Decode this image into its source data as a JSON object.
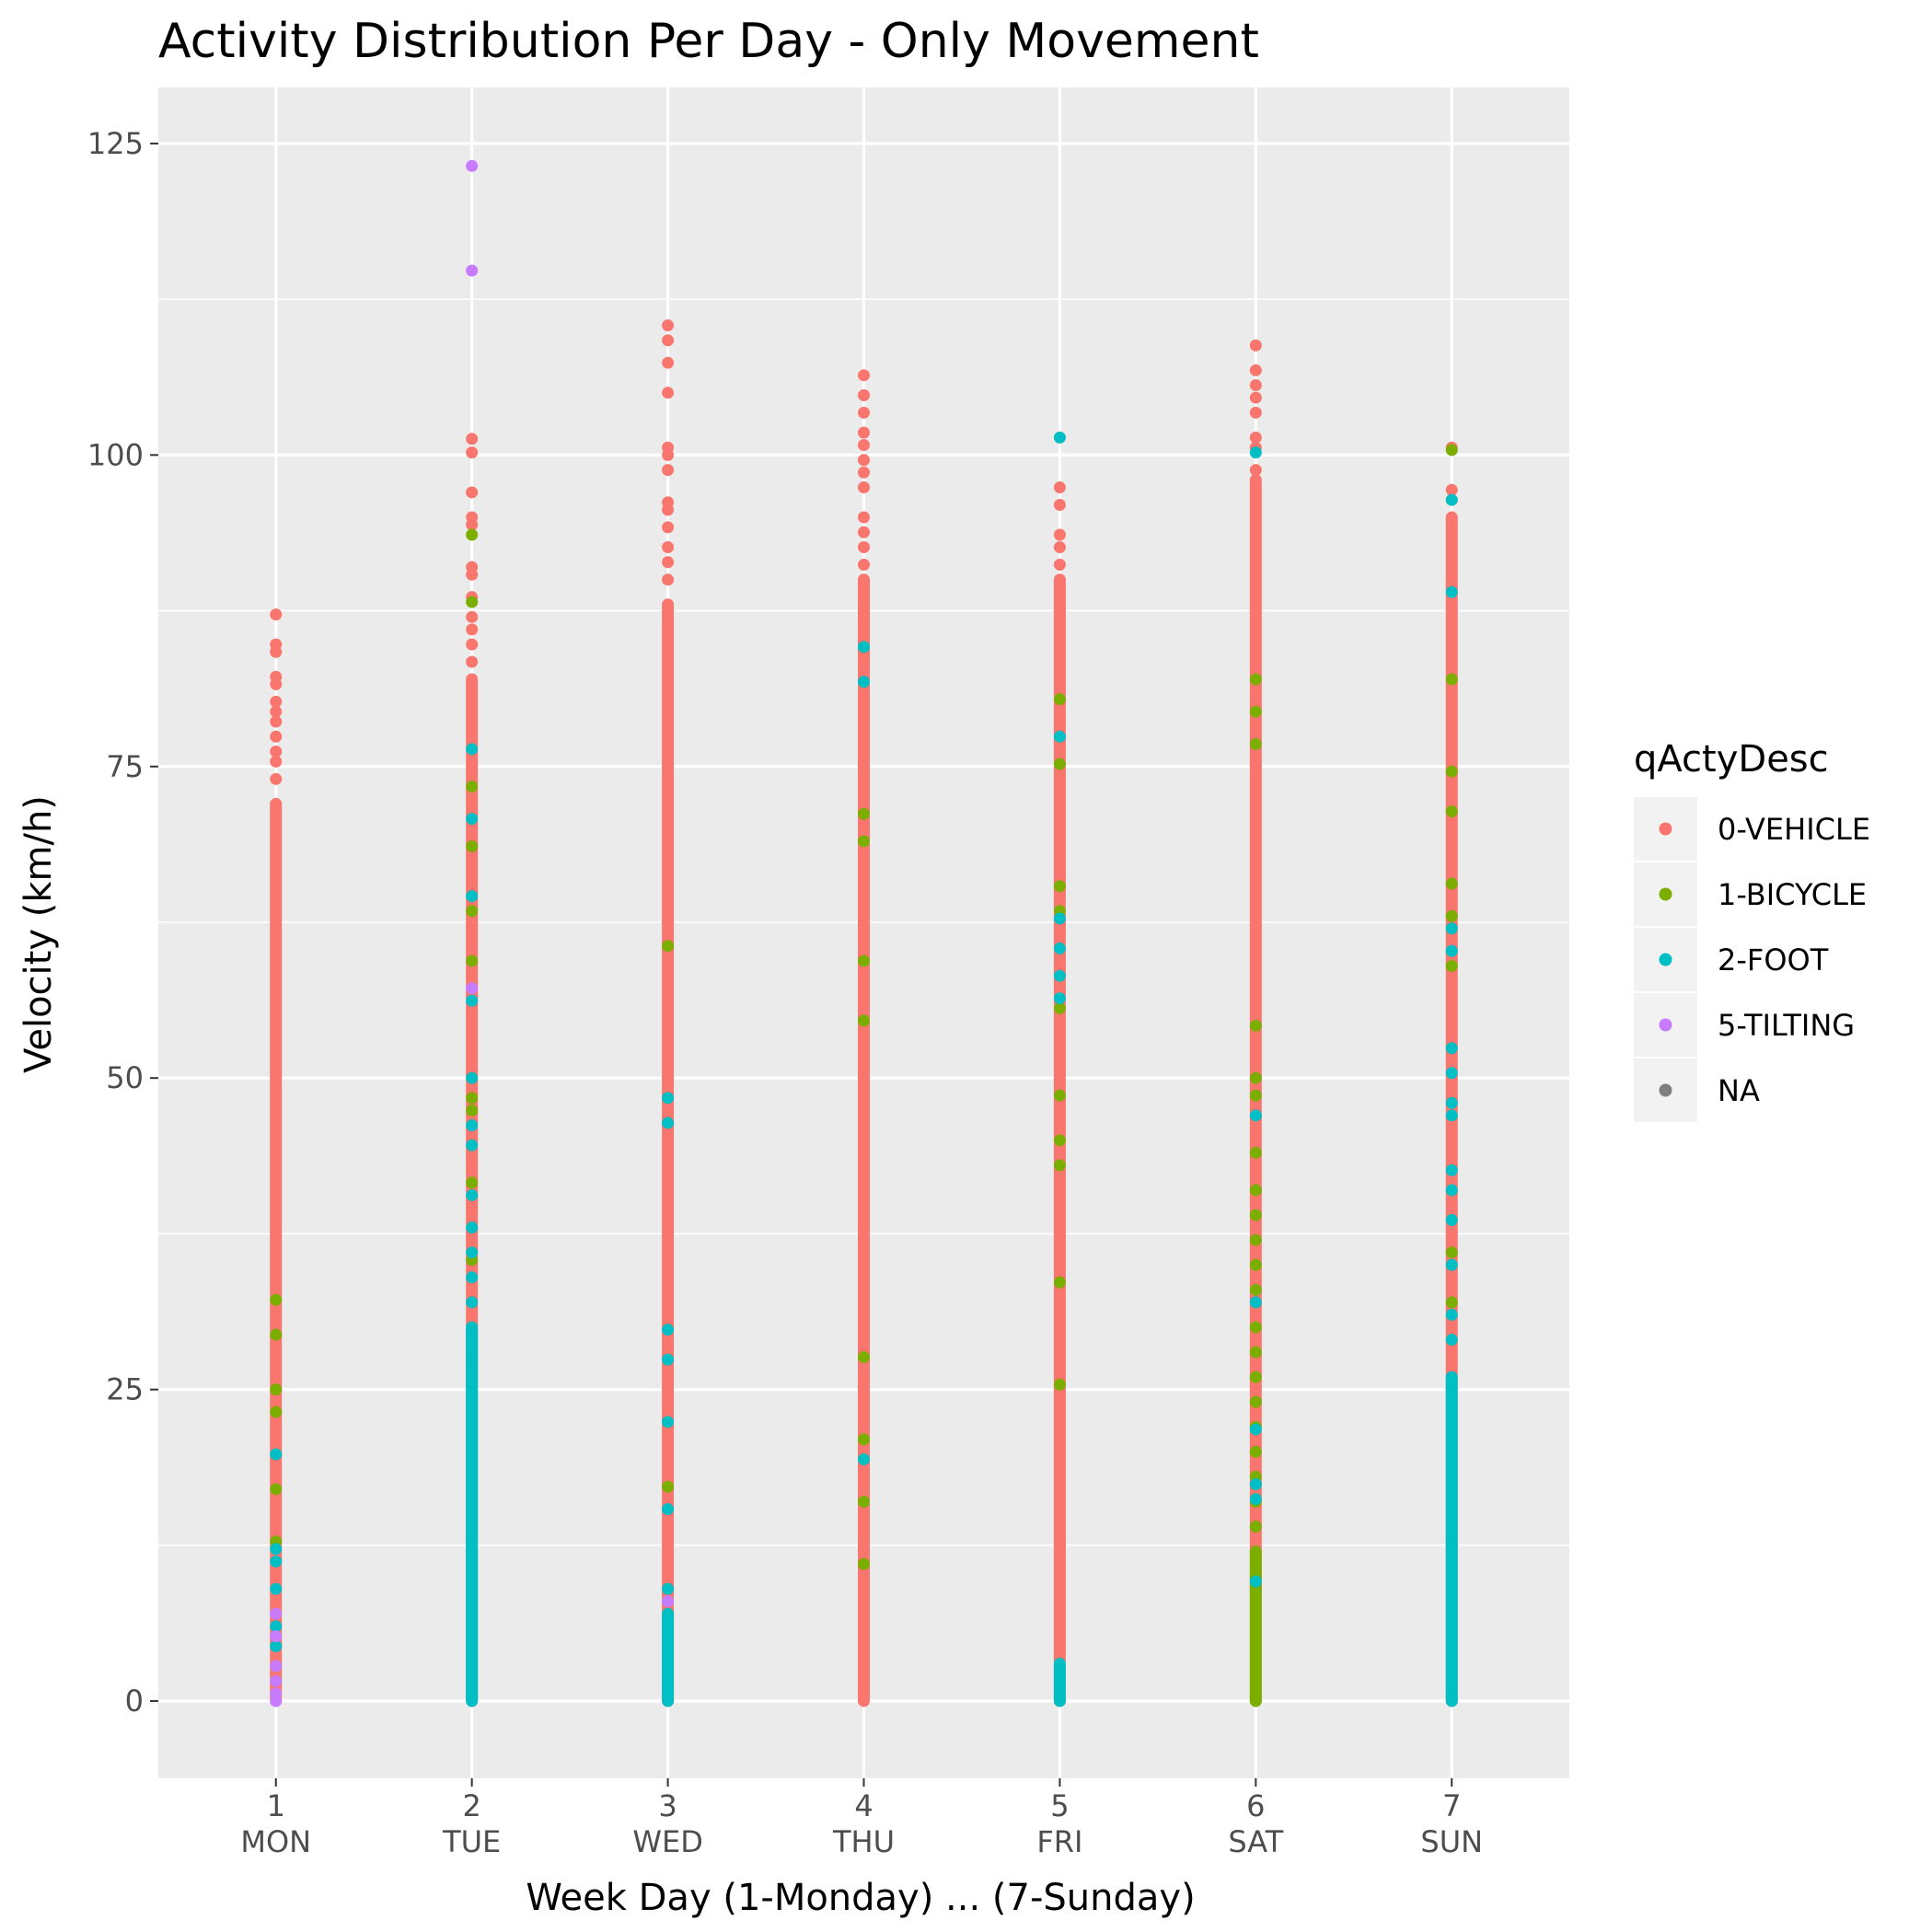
{
  "chart_data": {
    "type": "scatter",
    "title": "Activity Distribution Per Day - Only Movement",
    "xlabel": "Week Day (1-Monday) ... (7-Sunday)",
    "ylabel": "Velocity (km/h)",
    "xlim": [
      0.4,
      7.6
    ],
    "ylim": [
      -6.2,
      129.5
    ],
    "yticks": [
      0,
      25,
      50,
      75,
      100,
      125
    ],
    "xticks": [
      1,
      2,
      3,
      4,
      5,
      6,
      7
    ],
    "xtick_numbers": [
      "1",
      "2",
      "3",
      "4",
      "5",
      "6",
      "7"
    ],
    "xtick_days": [
      "MON",
      "TUE",
      "WED",
      "THU",
      "FRI",
      "SAT",
      "SUN"
    ],
    "background": "#ebebeb",
    "grid": true,
    "legend": {
      "title": "qActyDesc",
      "position": "right",
      "entries": [
        {
          "label": "0-VEHICLE",
          "color": "#f8766d"
        },
        {
          "label": "1-BICYCLE",
          "color": "#7cae00"
        },
        {
          "label": "2-FOOT",
          "color": "#00bfc4"
        },
        {
          "label": "5-TILTING",
          "color": "#c77cff"
        },
        {
          "label": "NA",
          "color": "#7f7f7f"
        }
      ]
    },
    "series": [
      {
        "name": "0-VEHICLE",
        "color": "#f8766d",
        "ranges": [
          {
            "x": 1,
            "ymin": 0,
            "ymax": 72
          },
          {
            "x": 2,
            "ymin": 0,
            "ymax": 82
          },
          {
            "x": 3,
            "ymin": 0,
            "ymax": 88
          },
          {
            "x": 4,
            "ymin": 0,
            "ymax": 90
          },
          {
            "x": 5,
            "ymin": 0,
            "ymax": 90
          },
          {
            "x": 6,
            "ymin": 0,
            "ymax": 98
          },
          {
            "x": 7,
            "ymin": 0,
            "ymax": 95
          }
        ],
        "points": [
          {
            "x": 1,
            "y": 87.2
          },
          {
            "x": 1,
            "y": 84.8
          },
          {
            "x": 1,
            "y": 84.2
          },
          {
            "x": 1,
            "y": 82.2
          },
          {
            "x": 1,
            "y": 81.6
          },
          {
            "x": 1,
            "y": 80.2
          },
          {
            "x": 1,
            "y": 79.4
          },
          {
            "x": 1,
            "y": 78.6
          },
          {
            "x": 1,
            "y": 77.4
          },
          {
            "x": 1,
            "y": 76.2
          },
          {
            "x": 1,
            "y": 75.4
          },
          {
            "x": 1,
            "y": 74.0
          },
          {
            "x": 2,
            "y": 101.3
          },
          {
            "x": 2,
            "y": 100.2
          },
          {
            "x": 2,
            "y": 97.0
          },
          {
            "x": 2,
            "y": 95.0
          },
          {
            "x": 2,
            "y": 94.4
          },
          {
            "x": 2,
            "y": 91.0
          },
          {
            "x": 2,
            "y": 90.4
          },
          {
            "x": 2,
            "y": 88.6
          },
          {
            "x": 2,
            "y": 87.0
          },
          {
            "x": 2,
            "y": 86.0
          },
          {
            "x": 2,
            "y": 84.8
          },
          {
            "x": 2,
            "y": 83.4
          },
          {
            "x": 3,
            "y": 110.4
          },
          {
            "x": 3,
            "y": 109.2
          },
          {
            "x": 3,
            "y": 107.4
          },
          {
            "x": 3,
            "y": 105.0
          },
          {
            "x": 3,
            "y": 100.6
          },
          {
            "x": 3,
            "y": 100.0
          },
          {
            "x": 3,
            "y": 98.8
          },
          {
            "x": 3,
            "y": 96.2
          },
          {
            "x": 3,
            "y": 95.6
          },
          {
            "x": 3,
            "y": 94.2
          },
          {
            "x": 3,
            "y": 92.6
          },
          {
            "x": 3,
            "y": 91.4
          },
          {
            "x": 3,
            "y": 90.0
          },
          {
            "x": 4,
            "y": 106.4
          },
          {
            "x": 4,
            "y": 104.8
          },
          {
            "x": 4,
            "y": 103.4
          },
          {
            "x": 4,
            "y": 101.8
          },
          {
            "x": 4,
            "y": 100.8
          },
          {
            "x": 4,
            "y": 99.6
          },
          {
            "x": 4,
            "y": 98.6
          },
          {
            "x": 4,
            "y": 97.4
          },
          {
            "x": 4,
            "y": 95.0
          },
          {
            "x": 4,
            "y": 93.8
          },
          {
            "x": 4,
            "y": 92.6
          },
          {
            "x": 4,
            "y": 91.2
          },
          {
            "x": 5,
            "y": 97.4
          },
          {
            "x": 5,
            "y": 96.0
          },
          {
            "x": 5,
            "y": 93.6
          },
          {
            "x": 5,
            "y": 92.6
          },
          {
            "x": 5,
            "y": 91.2
          },
          {
            "x": 6,
            "y": 108.8
          },
          {
            "x": 6,
            "y": 106.8
          },
          {
            "x": 6,
            "y": 105.6
          },
          {
            "x": 6,
            "y": 104.6
          },
          {
            "x": 6,
            "y": 103.4
          },
          {
            "x": 6,
            "y": 101.4
          },
          {
            "x": 6,
            "y": 100.6
          },
          {
            "x": 6,
            "y": 98.8
          },
          {
            "x": 7,
            "y": 100.6
          },
          {
            "x": 7,
            "y": 97.2
          },
          {
            "x": 7,
            "y": 96.4
          }
        ]
      },
      {
        "name": "1-BICYCLE",
        "color": "#7cae00",
        "ranges": [
          {
            "x": 6,
            "ymin": 0,
            "ymax": 12
          }
        ],
        "points": [
          {
            "x": 1,
            "y": 32.2
          },
          {
            "x": 1,
            "y": 29.4
          },
          {
            "x": 1,
            "y": 25.0
          },
          {
            "x": 1,
            "y": 23.2
          },
          {
            "x": 1,
            "y": 17.0
          },
          {
            "x": 1,
            "y": 12.8
          },
          {
            "x": 2,
            "y": 93.6
          },
          {
            "x": 2,
            "y": 88.2
          },
          {
            "x": 2,
            "y": 73.4
          },
          {
            "x": 2,
            "y": 68.6
          },
          {
            "x": 2,
            "y": 63.4
          },
          {
            "x": 2,
            "y": 59.4
          },
          {
            "x": 2,
            "y": 48.4
          },
          {
            "x": 2,
            "y": 47.4
          },
          {
            "x": 2,
            "y": 41.6
          },
          {
            "x": 2,
            "y": 35.4
          },
          {
            "x": 2,
            "y": 27.2
          },
          {
            "x": 3,
            "y": 60.6
          },
          {
            "x": 3,
            "y": 17.2
          },
          {
            "x": 4,
            "y": 71.2
          },
          {
            "x": 4,
            "y": 69.0
          },
          {
            "x": 4,
            "y": 59.4
          },
          {
            "x": 4,
            "y": 54.6
          },
          {
            "x": 4,
            "y": 27.6
          },
          {
            "x": 4,
            "y": 21.0
          },
          {
            "x": 4,
            "y": 16.0
          },
          {
            "x": 4,
            "y": 11.0
          },
          {
            "x": 5,
            "y": 80.4
          },
          {
            "x": 5,
            "y": 75.2
          },
          {
            "x": 5,
            "y": 65.4
          },
          {
            "x": 5,
            "y": 63.4
          },
          {
            "x": 5,
            "y": 55.6
          },
          {
            "x": 5,
            "y": 48.6
          },
          {
            "x": 5,
            "y": 45.0
          },
          {
            "x": 5,
            "y": 43.0
          },
          {
            "x": 5,
            "y": 33.6
          },
          {
            "x": 5,
            "y": 25.4
          },
          {
            "x": 6,
            "y": 82.0
          },
          {
            "x": 6,
            "y": 79.4
          },
          {
            "x": 6,
            "y": 76.8
          },
          {
            "x": 6,
            "y": 54.2
          },
          {
            "x": 6,
            "y": 50.0
          },
          {
            "x": 6,
            "y": 48.6
          },
          {
            "x": 6,
            "y": 44.0
          },
          {
            "x": 6,
            "y": 41.0
          },
          {
            "x": 6,
            "y": 39.0
          },
          {
            "x": 6,
            "y": 37.0
          },
          {
            "x": 6,
            "y": 35.0
          },
          {
            "x": 6,
            "y": 33.0
          },
          {
            "x": 6,
            "y": 30.0
          },
          {
            "x": 6,
            "y": 28.0
          },
          {
            "x": 6,
            "y": 26.0
          },
          {
            "x": 6,
            "y": 24.0
          },
          {
            "x": 6,
            "y": 22.0
          },
          {
            "x": 6,
            "y": 20.0
          },
          {
            "x": 6,
            "y": 18.0
          },
          {
            "x": 6,
            "y": 16.0
          },
          {
            "x": 6,
            "y": 14.0
          },
          {
            "x": 7,
            "y": 100.4
          },
          {
            "x": 7,
            "y": 82.0
          },
          {
            "x": 7,
            "y": 74.6
          },
          {
            "x": 7,
            "y": 71.4
          },
          {
            "x": 7,
            "y": 65.6
          },
          {
            "x": 7,
            "y": 63.0
          },
          {
            "x": 7,
            "y": 59.0
          },
          {
            "x": 7,
            "y": 36.0
          },
          {
            "x": 7,
            "y": 32.0
          }
        ]
      },
      {
        "name": "2-FOOT",
        "color": "#00bfc4",
        "ranges": [
          {
            "x": 2,
            "ymin": 0,
            "ymax": 30
          },
          {
            "x": 3,
            "ymin": 0,
            "ymax": 7
          },
          {
            "x": 5,
            "ymin": 0,
            "ymax": 3
          },
          {
            "x": 7,
            "ymin": 0,
            "ymax": 26
          }
        ],
        "points": [
          {
            "x": 1,
            "y": 19.8
          },
          {
            "x": 1,
            "y": 12.2
          },
          {
            "x": 1,
            "y": 11.2
          },
          {
            "x": 1,
            "y": 9.0
          },
          {
            "x": 1,
            "y": 6.0
          },
          {
            "x": 1,
            "y": 4.4
          },
          {
            "x": 2,
            "y": 76.4
          },
          {
            "x": 2,
            "y": 70.8
          },
          {
            "x": 2,
            "y": 64.6
          },
          {
            "x": 2,
            "y": 56.2
          },
          {
            "x": 2,
            "y": 50.0
          },
          {
            "x": 2,
            "y": 46.2
          },
          {
            "x": 2,
            "y": 44.6
          },
          {
            "x": 2,
            "y": 40.6
          },
          {
            "x": 2,
            "y": 38.0
          },
          {
            "x": 2,
            "y": 36.0
          },
          {
            "x": 2,
            "y": 34.0
          },
          {
            "x": 2,
            "y": 32.0
          },
          {
            "x": 3,
            "y": 48.4
          },
          {
            "x": 3,
            "y": 46.4
          },
          {
            "x": 3,
            "y": 29.8
          },
          {
            "x": 3,
            "y": 27.4
          },
          {
            "x": 3,
            "y": 22.4
          },
          {
            "x": 3,
            "y": 15.4
          },
          {
            "x": 3,
            "y": 9.0
          },
          {
            "x": 4,
            "y": 84.6
          },
          {
            "x": 4,
            "y": 81.8
          },
          {
            "x": 4,
            "y": 19.4
          },
          {
            "x": 5,
            "y": 101.4
          },
          {
            "x": 5,
            "y": 77.4
          },
          {
            "x": 5,
            "y": 62.8
          },
          {
            "x": 5,
            "y": 60.4
          },
          {
            "x": 5,
            "y": 58.2
          },
          {
            "x": 5,
            "y": 56.4
          },
          {
            "x": 6,
            "y": 100.2
          },
          {
            "x": 6,
            "y": 47.0
          },
          {
            "x": 6,
            "y": 32.0
          },
          {
            "x": 6,
            "y": 21.8
          },
          {
            "x": 6,
            "y": 17.4
          },
          {
            "x": 6,
            "y": 16.2
          },
          {
            "x": 6,
            "y": 9.6
          },
          {
            "x": 7,
            "y": 96.4
          },
          {
            "x": 7,
            "y": 89.0
          },
          {
            "x": 7,
            "y": 62.0
          },
          {
            "x": 7,
            "y": 60.2
          },
          {
            "x": 7,
            "y": 52.4
          },
          {
            "x": 7,
            "y": 50.4
          },
          {
            "x": 7,
            "y": 48.0
          },
          {
            "x": 7,
            "y": 47.0
          },
          {
            "x": 7,
            "y": 42.6
          },
          {
            "x": 7,
            "y": 41.0
          },
          {
            "x": 7,
            "y": 38.6
          },
          {
            "x": 7,
            "y": 35.0
          },
          {
            "x": 7,
            "y": 31.0
          },
          {
            "x": 7,
            "y": 29.0
          }
        ]
      },
      {
        "name": "5-TILTING",
        "color": "#c77cff",
        "ranges": [],
        "points": [
          {
            "x": 2,
            "y": 123.2
          },
          {
            "x": 2,
            "y": 114.8
          },
          {
            "x": 2,
            "y": 57.2
          },
          {
            "x": 1,
            "y": 7.0
          },
          {
            "x": 1,
            "y": 5.2
          },
          {
            "x": 1,
            "y": 2.8
          },
          {
            "x": 1,
            "y": 1.6
          },
          {
            "x": 1,
            "y": 0.6
          },
          {
            "x": 1,
            "y": 0.0
          },
          {
            "x": 3,
            "y": 8.0
          }
        ]
      },
      {
        "name": "NA",
        "color": "#7f7f7f",
        "ranges": [],
        "points": []
      }
    ]
  }
}
